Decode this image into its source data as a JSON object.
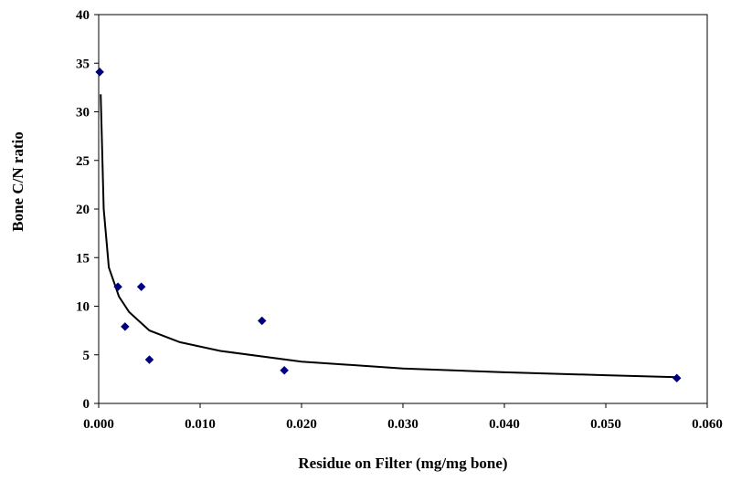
{
  "chart_data": {
    "type": "scatter",
    "title": "",
    "xlabel": "Residue on Filter (mg/mg bone)",
    "ylabel": "Bone C/N ratio",
    "xlim": [
      0,
      0.06
    ],
    "ylim": [
      0,
      40
    ],
    "x_ticks": [
      "0.000",
      "0.010",
      "0.020",
      "0.030",
      "0.040",
      "0.050",
      "0.060"
    ],
    "y_ticks": [
      "0",
      "5",
      "10",
      "15",
      "20",
      "25",
      "30",
      "35",
      "40"
    ],
    "grid": false,
    "legend": "none",
    "series": [
      {
        "marker": "diamond",
        "color": "#00007f",
        "points": [
          {
            "x": 0.0001,
            "y": 34.1
          },
          {
            "x": 0.0019,
            "y": 12.0
          },
          {
            "x": 0.0026,
            "y": 7.9
          },
          {
            "x": 0.0042,
            "y": 12.0
          },
          {
            "x": 0.005,
            "y": 4.5
          },
          {
            "x": 0.0161,
            "y": 8.5
          },
          {
            "x": 0.0183,
            "y": 3.4
          },
          {
            "x": 0.057,
            "y": 2.6
          }
        ]
      }
    ],
    "trendline": {
      "type": "power",
      "color": "#000000",
      "points": [
        {
          "x": 0.0002,
          "y": 31.8
        },
        {
          "x": 0.0005,
          "y": 20.0
        },
        {
          "x": 0.001,
          "y": 14.0
        },
        {
          "x": 0.002,
          "y": 11.0
        },
        {
          "x": 0.003,
          "y": 9.4
        },
        {
          "x": 0.005,
          "y": 7.5
        },
        {
          "x": 0.008,
          "y": 6.3
        },
        {
          "x": 0.012,
          "y": 5.4
        },
        {
          "x": 0.02,
          "y": 4.3
        },
        {
          "x": 0.03,
          "y": 3.6
        },
        {
          "x": 0.04,
          "y": 3.2
        },
        {
          "x": 0.05,
          "y": 2.9
        },
        {
          "x": 0.057,
          "y": 2.7
        }
      ]
    }
  }
}
